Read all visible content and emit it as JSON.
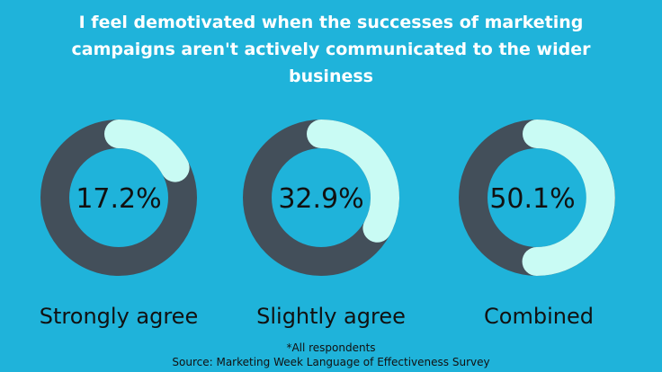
{
  "title": "I feel demotivated when the successes of marketing campaigns aren't actively communicated to the wider business",
  "footnote": "*All respondents",
  "source": "Source: Marketing Week Language of Effectiveness Survey",
  "colors": {
    "background": "#1fb3da",
    "track": "#434f5a",
    "fill": "#c9fbf4",
    "text": "#111111"
  },
  "chart_data": {
    "type": "pie",
    "style": "donut",
    "categories": [
      "Strongly agree",
      "Slightly agree",
      "Combined"
    ],
    "values": [
      17.2,
      32.9,
      50.1
    ],
    "labels": [
      "17.2%",
      "32.9%",
      "50.1%"
    ],
    "unit": "%"
  }
}
